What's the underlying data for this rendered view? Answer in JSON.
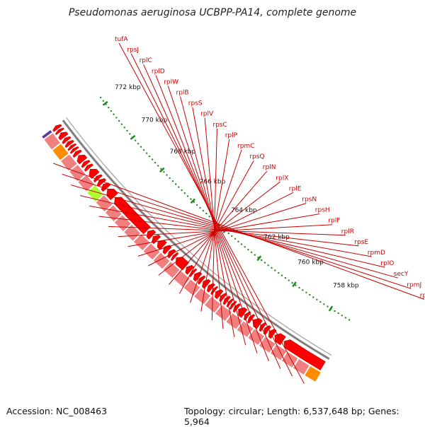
{
  "header": {
    "title": "Pseudomonas aeruginosa UCBPP-PA14, complete genome"
  },
  "footer": {
    "accession": "Accession: NC_008463",
    "summary": "Topology: circular; Length: 6,537,648 bp; Genes: 5,964"
  },
  "colors": {
    "gene_cds": "#ff0000",
    "gene_band": "#f08080",
    "highlight_band": "#adff2f",
    "rrna_band": "#ff8c00",
    "other_band": "#5b3c9a",
    "label_text": "#cc0000",
    "scale_tick": "#228b22",
    "backbone": "#808080"
  },
  "scale": {
    "labels": [
      "758 kbp",
      "760 kbp",
      "762 kbp",
      "764 kbp",
      "766 kbp",
      "768 kbp",
      "770 kbp",
      "772 kbp"
    ]
  },
  "genes": [
    "tufA",
    "rpsJ",
    "rplC",
    "rplD",
    "rplW",
    "rplB",
    "rpsS",
    "rplV",
    "rpsC",
    "rplP",
    "rpmC",
    "rpsQ",
    "rplN",
    "rplX",
    "rplE",
    "rpsN",
    "rpsH",
    "rplF",
    "rplR",
    "rpsE",
    "rpmD",
    "rplO",
    "secY",
    "rpmJ",
    "rpsM"
  ]
}
